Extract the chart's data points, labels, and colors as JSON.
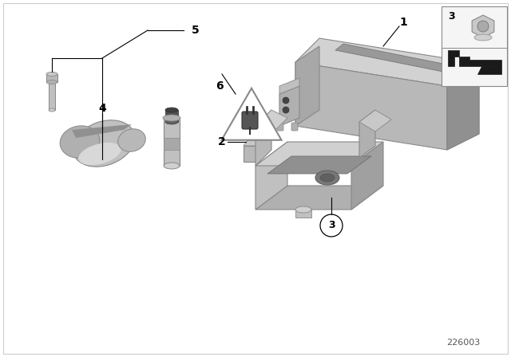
{
  "background_color": "#ffffff",
  "diagram_id": "226003",
  "label_color": "#000000",
  "line_color": "#000000",
  "gray_light": "#c8c8c8",
  "gray_mid": "#a8a8a8",
  "gray_dark": "#888888",
  "gray_darker": "#606060",
  "gray_highlight": "#e0e0e0",
  "label_fontsize": 10,
  "bold": true
}
